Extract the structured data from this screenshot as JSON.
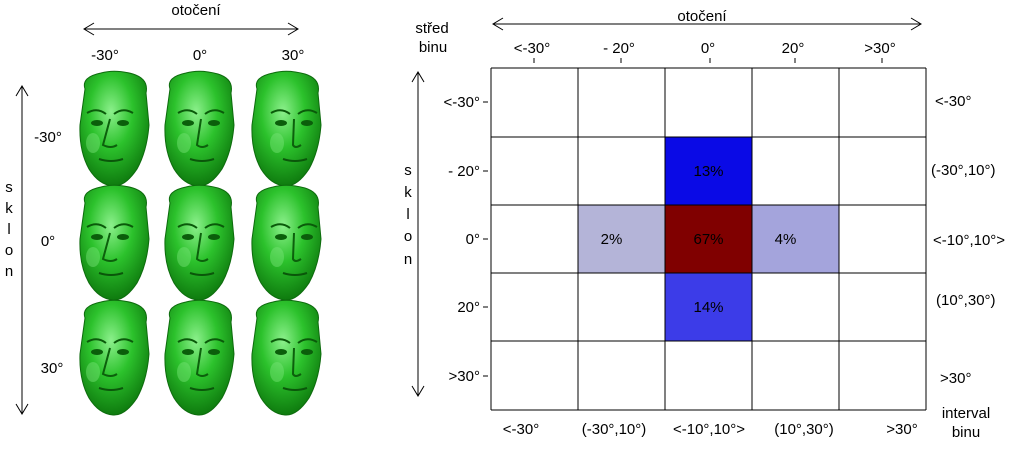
{
  "left": {
    "rotation_label": "otočení",
    "tilt_label": "sklon",
    "yaw_labels": [
      "-30°",
      "0°",
      "30°"
    ],
    "pitch_labels": [
      "-30°",
      "0°",
      "30°"
    ],
    "face_color": "#22b422",
    "faces": [
      {
        "yaw": "-30°",
        "pitch": "-30°"
      },
      {
        "yaw": "0°",
        "pitch": "-30°"
      },
      {
        "yaw": "30°",
        "pitch": "-30°"
      },
      {
        "yaw": "-30°",
        "pitch": "0°"
      },
      {
        "yaw": "0°",
        "pitch": "0°"
      },
      {
        "yaw": "30°",
        "pitch": "0°"
      },
      {
        "yaw": "-30°",
        "pitch": "30°"
      },
      {
        "yaw": "0°",
        "pitch": "30°"
      },
      {
        "yaw": "30°",
        "pitch": "30°"
      }
    ]
  },
  "right": {
    "rotation_label": "otočení",
    "bin_center_label": "střed binu",
    "tilt_label": "sklon",
    "interval_label": "interval binu",
    "col_centers": [
      "<-30°",
      "- 20°",
      "0°",
      "20°",
      ">30°"
    ],
    "row_centers": [
      "<-30°",
      "- 20°",
      "0°",
      "20°",
      ">30°"
    ],
    "col_intervals": [
      "<-30°",
      "(-30°,10°)",
      "<-10°,10°>",
      "(10°,30°)",
      ">30°"
    ],
    "row_intervals": [
      "<-30°",
      "(-30°,10°)",
      "<-10°,10°>",
      "(10°,30°)",
      ">30°"
    ],
    "cells": [
      {
        "row": 1,
        "col": 2,
        "label": "13%",
        "color": "#0a0ae6"
      },
      {
        "row": 2,
        "col": 1,
        "label": "2%",
        "color": "#b4b4d8"
      },
      {
        "row": 2,
        "col": 2,
        "label": "67%",
        "color": "#800000"
      },
      {
        "row": 2,
        "col": 3,
        "label": "4%",
        "color": "#a4a4dc"
      },
      {
        "row": 3,
        "col": 2,
        "label": "14%",
        "color": "#3c3ce8"
      }
    ]
  }
}
